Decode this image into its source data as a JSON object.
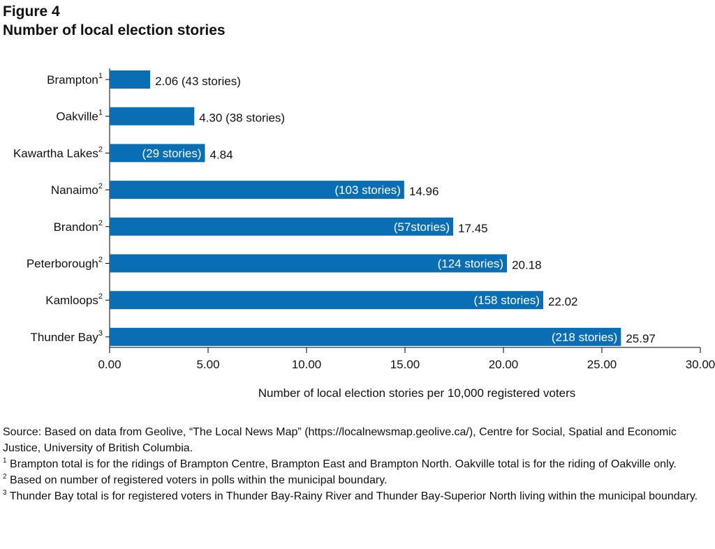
{
  "figure_label": "Figure 4",
  "figure_title": "Number of local election stories",
  "chart_data": {
    "type": "bar",
    "orientation": "horizontal",
    "title": "Number of local election stories",
    "xlabel": "Number of local election stories per 10,000 registered voters",
    "ylabel": "",
    "xlim": [
      0,
      30
    ],
    "ticks": [
      "0.00",
      "5.00",
      "10.00",
      "15.00",
      "20.00",
      "25.00",
      "30.00"
    ],
    "tick_values": [
      0,
      5,
      10,
      15,
      20,
      25,
      30
    ],
    "grid": false,
    "bar_color": "#0a6eb4",
    "categories": [
      {
        "label": "Brampton",
        "sup": "1",
        "value": 2.06,
        "value_label": "2.06",
        "stories_label": "(43 stories)",
        "stories_inside": false
      },
      {
        "label": "Oakville",
        "sup": "1",
        "value": 4.3,
        "value_label": "4.30",
        "stories_label": "(38 stories)",
        "stories_inside": false
      },
      {
        "label": "Kawartha Lakes",
        "sup": "2",
        "value": 4.84,
        "value_label": "4.84",
        "stories_label": "(29 stories)",
        "stories_inside": true
      },
      {
        "label": "Nanaimo",
        "sup": "2",
        "value": 14.96,
        "value_label": "14.96",
        "stories_label": "(103 stories)",
        "stories_inside": true
      },
      {
        "label": "Brandon",
        "sup": "2",
        "value": 17.45,
        "value_label": "17.45",
        "stories_label": "(57stories)",
        "stories_inside": true
      },
      {
        "label": "Peterborough",
        "sup": "2",
        "value": 20.18,
        "value_label": "20.18",
        "stories_label": "(124 stories)",
        "stories_inside": true
      },
      {
        "label": "Kamloops",
        "sup": "2",
        "value": 22.02,
        "value_label": "22.02",
        "stories_label": "(158 stories)",
        "stories_inside": true
      },
      {
        "label": "Thunder Bay",
        "sup": "3",
        "value": 25.97,
        "value_label": "25.97",
        "stories_label": "(218 stories)",
        "stories_inside": true
      }
    ]
  },
  "notes": {
    "source": "Source: Based on data from Geolive, “The Local News Map” (https://localnewsmap.geolive.ca/), Centre for Social, Spatial and Economic Justice, University of British Columbia.",
    "footnotes": [
      {
        "mark": "1",
        "text": "Brampton total is for the ridings of Brampton Centre, Brampton East and Brampton North. Oakville total is for the riding of Oakville only."
      },
      {
        "mark": "2",
        "text": "Based on number of registered voters in polls within the municipal boundary."
      },
      {
        "mark": "3",
        "text": "Thunder Bay total  is for registered voters in Thunder Bay-Rainy River and Thunder Bay-Superior North living within the municipal boundary."
      }
    ]
  }
}
